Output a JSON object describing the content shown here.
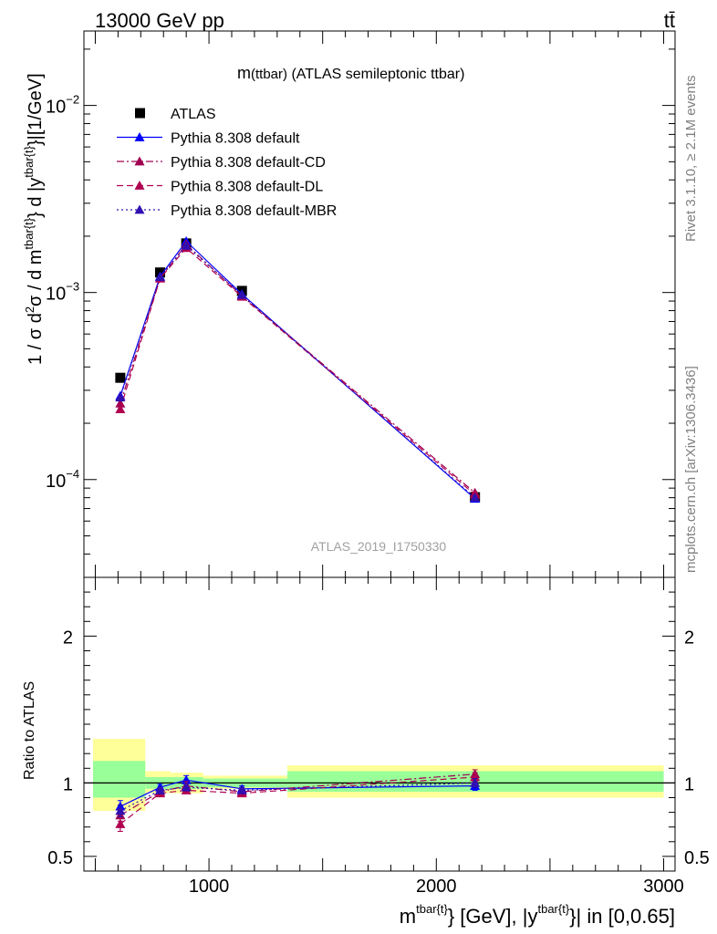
{
  "header": {
    "left": "13000 GeV pp",
    "right": "tt̄"
  },
  "side_labels": {
    "rivet": "Rivet 3.1.10, ≥ 2.1M events",
    "mcplots": "mcplots.cern.ch [arXiv:1306.3436]"
  },
  "chart_data": [
    {
      "type": "scatter",
      "title_main": "m",
      "title_small": "(ttbar)",
      "title_rest": " (ATLAS semileptonic ttbar)",
      "watermark": "ATLAS_2019_I1750330",
      "ylabel": "1 / σ d²σ / d m^{tbar{t}} d |y^{tbar{t}}|[1/GeV]",
      "ylabel_parts": {
        "a": "1 / σ d",
        "b": "2",
        "c": "σ / d m",
        "d": "tbar{t}",
        "e": "} d |y",
        "f": "tbar{t}",
        "g": "}|[1/GeV]"
      },
      "yscale": "log",
      "xlim": [
        450,
        3050
      ],
      "ylim": [
        3e-05,
        0.025
      ],
      "ytick_labels": [
        {
          "value": 0.0001,
          "base": "10",
          "exp": "−4"
        },
        {
          "value": 0.001,
          "base": "10",
          "exp": "−3"
        },
        {
          "value": 0.01,
          "base": "10",
          "exp": "−2"
        }
      ],
      "legend_position": "top-left",
      "series": [
        {
          "name": "ATLAS",
          "color": "#000000",
          "marker": "square",
          "line": "none",
          "x": [
            610,
            785,
            900,
            1145,
            2170
          ],
          "y": [
            0.00035,
            0.00128,
            0.00183,
            0.00102,
            8.05e-05
          ]
        },
        {
          "name": "Pythia 8.308 default",
          "color": "#0000ff",
          "marker": "triangle",
          "line": "solid",
          "x": [
            610,
            785,
            900,
            1145,
            2170
          ],
          "y": [
            0.00028,
            0.00122,
            0.00188,
            0.00098,
            7.9e-05
          ]
        },
        {
          "name": "Pythia 8.308 default-CD",
          "color": "#a00050",
          "marker": "triangle",
          "line": "dashdot",
          "x": [
            610,
            785,
            900,
            1145,
            2170
          ],
          "y": [
            0.000255,
            0.00119,
            0.00181,
            0.00096,
            8.5e-05
          ]
        },
        {
          "name": "Pythia 8.308 default-DL",
          "color": "#b00050",
          "marker": "triangle",
          "line": "dashed",
          "x": [
            610,
            785,
            900,
            1145,
            2170
          ],
          "y": [
            0.000238,
            0.00119,
            0.00173,
            0.00095,
            8.3e-05
          ]
        },
        {
          "name": "Pythia 8.308 default-MBR",
          "color": "#3010b0",
          "marker": "triangle",
          "line": "dotted",
          "x": [
            610,
            785,
            900,
            1145,
            2170
          ],
          "y": [
            0.000275,
            0.00121,
            0.00178,
            0.00097,
            8e-05
          ]
        }
      ]
    },
    {
      "type": "scatter",
      "ylabel": "Ratio to ATLAS",
      "xlabel": "m^{tbar{t}} [GeV], |y^{tbar{t}}| in [0,0.65]",
      "xlabel_parts": {
        "a": "m",
        "b": "tbar{t}",
        "c": "} [GeV], |y",
        "d": "tbar{t}",
        "e": "}| in [0,0.65]"
      },
      "xlim": [
        450,
        3050
      ],
      "ylim": [
        0.4,
        2.4
      ],
      "xtick_labels": [
        {
          "value": 1000,
          "label": "1000"
        },
        {
          "value": 2000,
          "label": "2000"
        },
        {
          "value": 3000,
          "label": "3000"
        }
      ],
      "ytick_labels": [
        {
          "value": 0.5,
          "label": "0.5"
        },
        {
          "value": 1,
          "label": "1"
        },
        {
          "value": 2,
          "label": "2"
        }
      ],
      "bands": [
        {
          "x0": 490,
          "x1": 720,
          "g_lo": 0.9,
          "g_hi": 1.15,
          "y_lo": 0.81,
          "y_hi": 1.3
        },
        {
          "x0": 720,
          "x1": 830,
          "g_lo": 0.96,
          "g_hi": 1.04,
          "y_lo": 0.93,
          "y_hi": 1.08
        },
        {
          "x0": 830,
          "x1": 975,
          "g_lo": 0.96,
          "g_hi": 1.04,
          "y_lo": 0.93,
          "y_hi": 1.07
        },
        {
          "x0": 975,
          "x1": 1345,
          "g_lo": 0.97,
          "g_hi": 1.03,
          "y_lo": 0.96,
          "y_hi": 1.05
        },
        {
          "x0": 1345,
          "x1": 3000,
          "g_lo": 0.94,
          "g_hi": 1.08,
          "y_lo": 0.9,
          "y_hi": 1.12
        }
      ],
      "series": [
        {
          "name": "Pythia 8.308 default",
          "color": "#0000ff",
          "line": "solid",
          "x": [
            610,
            785,
            900,
            1145,
            2170
          ],
          "y": [
            0.84,
            0.97,
            1.02,
            0.96,
            0.98
          ],
          "err": [
            0.04,
            0.02,
            0.03,
            0.02,
            0.03
          ]
        },
        {
          "name": "Pythia 8.308 default-CD",
          "color": "#a00050",
          "line": "dashdot",
          "x": [
            610,
            785,
            900,
            1145,
            2170
          ],
          "y": [
            0.78,
            0.94,
            0.98,
            0.94,
            1.06
          ],
          "err": [
            0.04,
            0.02,
            0.03,
            0.02,
            0.03
          ]
        },
        {
          "name": "Pythia 8.308 default-DL",
          "color": "#b00050",
          "line": "dashed",
          "x": [
            610,
            785,
            900,
            1145,
            2170
          ],
          "y": [
            0.72,
            0.93,
            0.95,
            0.93,
            1.04
          ],
          "err": [
            0.05,
            0.02,
            0.02,
            0.02,
            0.03
          ]
        },
        {
          "name": "Pythia 8.308 default-MBR",
          "color": "#3010b0",
          "line": "dotted",
          "x": [
            610,
            785,
            900,
            1145,
            2170
          ],
          "y": [
            0.81,
            0.95,
            0.97,
            0.95,
            1.0
          ],
          "err": [
            0.04,
            0.02,
            0.02,
            0.02,
            0.03
          ]
        }
      ]
    }
  ]
}
